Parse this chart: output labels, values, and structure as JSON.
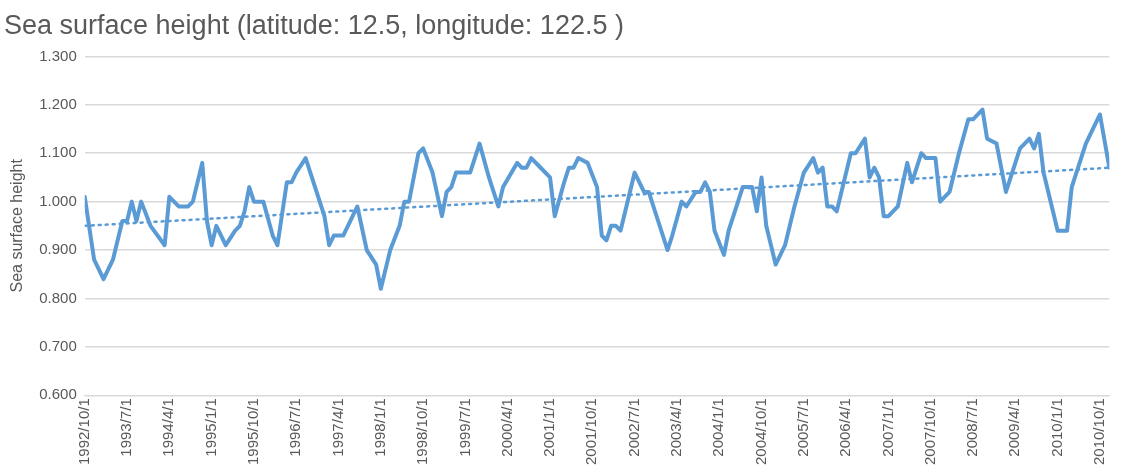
{
  "chart_data": {
    "type": "line",
    "title": "Sea surface height (latitude: 12.5, longitude: 122.5 )",
    "ylabel": "Sea surface height",
    "xlim": [
      "1992-10",
      "2010-12"
    ],
    "xticks": [
      {
        "value": "1992-10",
        "label": "1992/10/1"
      },
      {
        "value": "1993-07",
        "label": "1993/7/1"
      },
      {
        "value": "1994-04",
        "label": "1994/4/1"
      },
      {
        "value": "1995-01",
        "label": "1995/1/1"
      },
      {
        "value": "1995-10",
        "label": "1995/10/1"
      },
      {
        "value": "1996-07",
        "label": "1996/7/1"
      },
      {
        "value": "1997-04",
        "label": "1997/4/1"
      },
      {
        "value": "1998-01",
        "label": "1998/1/1"
      },
      {
        "value": "1998-10",
        "label": "1998/10/1"
      },
      {
        "value": "1999-07",
        "label": "1999/7/1"
      },
      {
        "value": "2000-04",
        "label": "2000/4/1"
      },
      {
        "value": "2001-01",
        "label": "2001/1/1"
      },
      {
        "value": "2001-10",
        "label": "2001/10/1"
      },
      {
        "value": "2002-07",
        "label": "2002/7/1"
      },
      {
        "value": "2003-04",
        "label": "2003/4/1"
      },
      {
        "value": "2004-01",
        "label": "2004/1/1"
      },
      {
        "value": "2004-10",
        "label": "2004/10/1"
      },
      {
        "value": "2005-07",
        "label": "2005/7/1"
      },
      {
        "value": "2006-04",
        "label": "2006/4/1"
      },
      {
        "value": "2007-01",
        "label": "2007/1/1"
      },
      {
        "value": "2007-10",
        "label": "2007/10/1"
      },
      {
        "value": "2008-07",
        "label": "2008/7/1"
      },
      {
        "value": "2009-04",
        "label": "2009/4/1"
      },
      {
        "value": "2010-01",
        "label": "2010/1/1"
      },
      {
        "value": "2010-10",
        "label": "2010/10/1"
      }
    ],
    "ylim": [
      0.6,
      1.3
    ],
    "yticks": [
      {
        "value": 0.6,
        "label": "0.600"
      },
      {
        "value": 0.7,
        "label": "0.700"
      },
      {
        "value": 0.8,
        "label": "0.800"
      },
      {
        "value": 0.9,
        "label": "0.900"
      },
      {
        "value": 1.0,
        "label": "1.000"
      },
      {
        "value": 1.1,
        "label": "1.100"
      },
      {
        "value": 1.2,
        "label": "1.200"
      },
      {
        "value": 1.3,
        "label": "1.300"
      }
    ],
    "grid": "y",
    "legend": false,
    "marker": "none",
    "series": [
      {
        "type": "line",
        "color": "#5b9bd5",
        "line_style": "solid",
        "x": [
          "1992-10",
          "1992-12",
          "1993-02",
          "1993-04",
          "1993-06",
          "1993-07",
          "1993-08",
          "1993-09",
          "1993-10",
          "1993-12",
          "1994-03",
          "1994-04",
          "1994-06",
          "1994-08",
          "1994-09",
          "1994-11",
          "1994-12",
          "1995-01",
          "1995-02",
          "1995-04",
          "1995-06",
          "1995-07",
          "1995-08",
          "1995-09",
          "1995-10",
          "1995-12",
          "1996-02",
          "1996-03",
          "1996-05",
          "1996-06",
          "1996-07",
          "1996-09",
          "1996-11",
          "1997-01",
          "1997-02",
          "1997-03",
          "1997-05",
          "1997-08",
          "1997-10",
          "1997-12",
          "1998-01",
          "1998-03",
          "1998-05",
          "1998-06",
          "1998-07",
          "1998-09",
          "1998-10",
          "1998-12",
          "1999-02",
          "1999-03",
          "1999-04",
          "1999-05",
          "1999-08",
          "1999-10",
          "1999-12",
          "2000-02",
          "2000-03",
          "2000-06",
          "2000-07",
          "2000-08",
          "2000-09",
          "2000-11",
          "2001-01",
          "2001-02",
          "2001-04",
          "2001-05",
          "2001-06",
          "2001-07",
          "2001-09",
          "2001-11",
          "2001-12",
          "2002-01",
          "2002-02",
          "2002-03",
          "2002-04",
          "2002-07",
          "2002-09",
          "2002-10",
          "2002-12",
          "2003-02",
          "2003-03",
          "2003-05",
          "2003-06",
          "2003-08",
          "2003-09",
          "2003-10",
          "2003-11",
          "2003-12",
          "2004-02",
          "2004-03",
          "2004-04",
          "2004-06",
          "2004-08",
          "2004-09",
          "2004-10",
          "2004-11",
          "2005-01",
          "2005-03",
          "2005-05",
          "2005-07",
          "2005-09",
          "2005-10",
          "2005-11",
          "2005-12",
          "2006-01",
          "2006-02",
          "2006-05",
          "2006-06",
          "2006-08",
          "2006-09",
          "2006-10",
          "2006-11",
          "2006-12",
          "2007-01",
          "2007-03",
          "2007-05",
          "2007-06",
          "2007-08",
          "2007-09",
          "2007-11",
          "2007-12",
          "2008-02",
          "2008-04",
          "2008-06",
          "2008-07",
          "2008-09",
          "2008-10",
          "2008-12",
          "2009-02",
          "2009-05",
          "2009-06",
          "2009-07",
          "2009-08",
          "2009-09",
          "2009-10",
          "2009-12",
          "2010-01",
          "2010-03",
          "2010-04",
          "2010-07",
          "2010-08",
          "2010-10",
          "2010-12"
        ],
        "values": [
          1.01,
          0.88,
          0.84,
          0.88,
          0.96,
          0.96,
          1.0,
          0.96,
          1.0,
          0.95,
          0.91,
          1.01,
          0.99,
          0.99,
          1.0,
          1.08,
          0.96,
          0.91,
          0.95,
          0.91,
          0.94,
          0.95,
          0.98,
          1.03,
          1.0,
          1.0,
          0.93,
          0.91,
          1.04,
          1.04,
          1.06,
          1.09,
          1.03,
          0.97,
          0.91,
          0.93,
          0.93,
          0.99,
          0.9,
          0.87,
          0.82,
          0.9,
          0.95,
          1.0,
          1.0,
          1.1,
          1.11,
          1.06,
          0.97,
          1.02,
          1.03,
          1.06,
          1.06,
          1.12,
          1.05,
          0.99,
          1.03,
          1.08,
          1.07,
          1.07,
          1.09,
          1.07,
          1.05,
          0.97,
          1.04,
          1.07,
          1.07,
          1.09,
          1.08,
          1.03,
          0.93,
          0.92,
          0.95,
          0.95,
          0.94,
          1.06,
          1.02,
          1.02,
          0.96,
          0.9,
          0.93,
          1.0,
          0.99,
          1.02,
          1.02,
          1.04,
          1.02,
          0.94,
          0.89,
          0.94,
          0.97,
          1.03,
          1.03,
          0.98,
          1.05,
          0.95,
          0.87,
          0.91,
          0.99,
          1.06,
          1.09,
          1.06,
          1.07,
          0.99,
          0.99,
          0.98,
          1.1,
          1.1,
          1.13,
          1.05,
          1.07,
          1.05,
          0.97,
          0.97,
          0.99,
          1.08,
          1.04,
          1.1,
          1.09,
          1.09,
          1.0,
          1.02,
          1.1,
          1.17,
          1.17,
          1.19,
          1.13,
          1.12,
          1.02,
          1.11,
          1.12,
          1.13,
          1.11,
          1.14,
          1.06,
          0.98,
          0.94,
          0.94,
          1.03,
          1.12,
          1.14,
          1.18,
          1.07
        ]
      },
      {
        "type": "line",
        "color": "#5b9bd5",
        "line_style": "dotted",
        "x": [
          "1992-10",
          "2010-12"
        ],
        "values": [
          0.95,
          1.07
        ]
      }
    ]
  }
}
